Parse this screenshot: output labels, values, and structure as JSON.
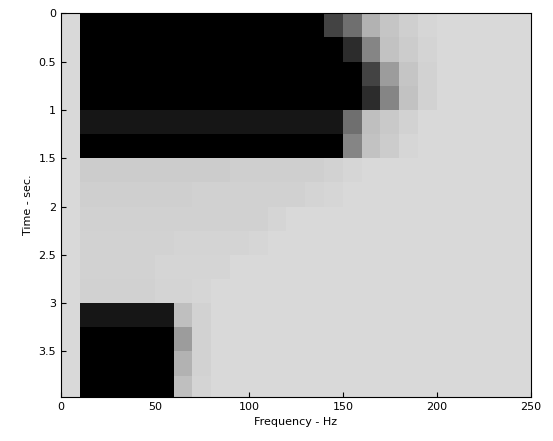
{
  "chart_data": {
    "type": "heatmap",
    "x_label": "Frequency - Hz",
    "y_label": "Time - sec.",
    "x": [
      5,
      15,
      25,
      35,
      45,
      55,
      65,
      75,
      85,
      95,
      105,
      115,
      125,
      135,
      145,
      155,
      165,
      175,
      185,
      195,
      205,
      215,
      225,
      235,
      245
    ],
    "y": [
      0.125,
      0.375,
      0.625,
      0.875,
      1.125,
      1.375,
      1.625,
      1.875,
      2.125,
      2.375,
      2.625,
      2.875,
      3.125,
      3.375,
      3.625,
      3.875
    ],
    "values": [
      [
        0,
        0.85,
        0.85,
        0.85,
        0.85,
        0.85,
        0.85,
        0.85,
        0.85,
        0.85,
        0.85,
        0.85,
        0.85,
        0.85,
        0.7,
        0.6,
        0.45,
        0.3,
        0.15,
        0.05,
        0,
        0,
        0,
        0,
        0
      ],
      [
        0,
        0.85,
        0.85,
        0.85,
        0.85,
        0.85,
        0.85,
        0.85,
        0.85,
        0.85,
        0.85,
        0.85,
        0.85,
        0.85,
        0.85,
        0.75,
        0.55,
        0.35,
        0.2,
        0.08,
        0,
        0,
        0,
        0,
        0
      ],
      [
        0,
        0.85,
        0.85,
        0.85,
        0.85,
        0.85,
        0.85,
        0.85,
        0.85,
        0.85,
        0.85,
        0.85,
        0.85,
        0.85,
        0.85,
        0.85,
        0.7,
        0.5,
        0.3,
        0.1,
        0,
        0,
        0,
        0,
        0
      ],
      [
        0,
        0.85,
        0.85,
        0.85,
        0.85,
        0.85,
        0.85,
        0.85,
        0.85,
        0.85,
        0.85,
        0.85,
        0.85,
        0.85,
        0.85,
        0.85,
        0.75,
        0.55,
        0.35,
        0.1,
        0,
        0,
        0,
        0,
        0
      ],
      [
        0,
        0.8,
        0.8,
        0.8,
        0.8,
        0.8,
        0.8,
        0.8,
        0.8,
        0.8,
        0.8,
        0.8,
        0.8,
        0.8,
        0.8,
        0.6,
        0.4,
        0.25,
        0.1,
        0,
        0,
        0,
        0,
        0,
        0
      ],
      [
        0,
        0.85,
        0.85,
        0.85,
        0.85,
        0.85,
        0.85,
        0.85,
        0.85,
        0.85,
        0.85,
        0.85,
        0.85,
        0.85,
        0.85,
        0.55,
        0.35,
        0.2,
        0.05,
        0,
        0,
        0,
        0,
        0,
        0
      ],
      [
        0,
        0.2,
        0.2,
        0.2,
        0.2,
        0.2,
        0.2,
        0.2,
        0.2,
        0.15,
        0.15,
        0.15,
        0.15,
        0.15,
        0.1,
        0.05,
        0,
        0,
        0,
        0,
        0,
        0,
        0,
        0,
        0
      ],
      [
        0,
        0.15,
        0.15,
        0.15,
        0.15,
        0.15,
        0.15,
        0.12,
        0.12,
        0.12,
        0.12,
        0.12,
        0.12,
        0.08,
        0.04,
        0,
        0,
        0,
        0,
        0,
        0,
        0,
        0,
        0,
        0
      ],
      [
        0,
        0.12,
        0.12,
        0.12,
        0.12,
        0.12,
        0.12,
        0.12,
        0.12,
        0.12,
        0.12,
        0.06,
        0,
        0,
        0,
        0,
        0,
        0,
        0,
        0,
        0,
        0,
        0,
        0,
        0
      ],
      [
        0,
        0.1,
        0.1,
        0.1,
        0.1,
        0.1,
        0.08,
        0.08,
        0.08,
        0.08,
        0.04,
        0,
        0,
        0,
        0,
        0,
        0,
        0,
        0,
        0,
        0,
        0,
        0,
        0,
        0
      ],
      [
        0,
        0.1,
        0.1,
        0.1,
        0.1,
        0.06,
        0.06,
        0.06,
        0.06,
        0,
        0,
        0,
        0,
        0,
        0,
        0,
        0,
        0,
        0,
        0,
        0,
        0,
        0,
        0,
        0
      ],
      [
        0,
        0.12,
        0.12,
        0.12,
        0.12,
        0.08,
        0.08,
        0.04,
        0,
        0,
        0,
        0,
        0,
        0,
        0,
        0,
        0,
        0,
        0,
        0,
        0,
        0,
        0,
        0,
        0
      ],
      [
        0,
        0.8,
        0.8,
        0.8,
        0.8,
        0.8,
        0.4,
        0.1,
        0,
        0,
        0,
        0,
        0,
        0,
        0,
        0,
        0,
        0,
        0,
        0,
        0,
        0,
        0,
        0,
        0
      ],
      [
        0,
        0.85,
        0.85,
        0.85,
        0.85,
        0.85,
        0.5,
        0.1,
        0,
        0,
        0,
        0,
        0,
        0,
        0,
        0,
        0,
        0,
        0,
        0,
        0,
        0,
        0,
        0,
        0
      ],
      [
        0,
        0.85,
        0.85,
        0.85,
        0.85,
        0.85,
        0.45,
        0.1,
        0,
        0,
        0,
        0,
        0,
        0,
        0,
        0,
        0,
        0,
        0,
        0,
        0,
        0,
        0,
        0,
        0
      ],
      [
        0,
        0.85,
        0.85,
        0.85,
        0.85,
        0.85,
        0.4,
        0.08,
        0,
        0,
        0,
        0,
        0,
        0,
        0,
        0,
        0,
        0,
        0,
        0,
        0,
        0,
        0,
        0,
        0
      ]
    ],
    "xlim": [
      0,
      250
    ],
    "xticks": [
      0,
      50,
      100,
      150,
      200,
      250
    ],
    "ylim": [
      3.97,
      0
    ],
    "yticks": [
      0,
      0.5,
      1,
      1.5,
      2,
      2.5,
      3,
      3.5
    ]
  }
}
